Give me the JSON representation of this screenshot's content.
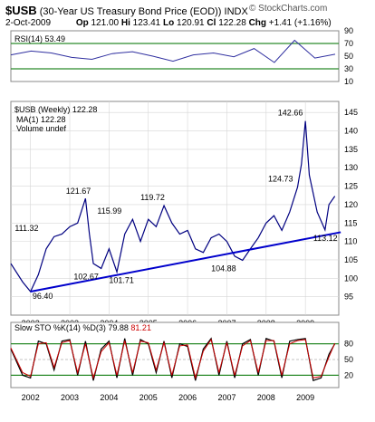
{
  "header": {
    "symbol": "$USB",
    "description": "(30-Year US Treasury Bond Price (EOD)) INDX",
    "date": "2-Oct-2009",
    "op_label": "Op",
    "op": "121.00",
    "hi_label": "Hi",
    "hi": "123.41",
    "lo_label": "Lo",
    "lo": "120.91",
    "cl_label": "Cl",
    "cl": "122.28",
    "chg_label": "Chg",
    "chg": "+1.41 (+1.16%)",
    "watermark": "© StockCharts.com"
  },
  "colors": {
    "price": "#000080",
    "up": "#000000",
    "down": "#cc0000",
    "trendline": "#0000cc",
    "rsi": "#3030a0",
    "sto_k": "#000000",
    "sto_d": "#cc0000",
    "band": "#2a8a2a",
    "grid": "#d6d6d6"
  },
  "chart_data": [
    {
      "type": "line",
      "panel": "rsi",
      "legend": "RSI(14) 53.49",
      "ylim": [
        10,
        90
      ],
      "yticks": [
        "90",
        "70",
        "50",
        "30",
        "10"
      ],
      "bands": [
        70,
        30
      ],
      "x": [
        "2002",
        "2002.5",
        "2003",
        "2003.5",
        "2004",
        "2004.5",
        "2005",
        "2005.5",
        "2006",
        "2006.5",
        "2007",
        "2007.5",
        "2008",
        "2008.5",
        "2009",
        "2009.5",
        "2009.75"
      ],
      "values": [
        52,
        58,
        55,
        48,
        45,
        54,
        57,
        50,
        42,
        52,
        55,
        49,
        62,
        40,
        75,
        47,
        53
      ]
    },
    {
      "type": "line",
      "panel": "price",
      "title": "$USB (Weekly) 122.28",
      "legend": [
        "MA(1) 122.28",
        "Volume undef"
      ],
      "ylim": [
        90,
        148
      ],
      "yticks": [
        "145",
        "140",
        "135",
        "130",
        "125",
        "120",
        "115",
        "110",
        "105",
        "100",
        "95"
      ],
      "xticks": [
        "2002",
        "2003",
        "2004",
        "2005",
        "2006",
        "2007",
        "2008",
        "2009"
      ],
      "annotations": [
        {
          "label": "96.40",
          "value": 96.4
        },
        {
          "label": "111.32",
          "value": 111.32
        },
        {
          "label": "121.67",
          "value": 121.67
        },
        {
          "label": "102.67",
          "value": 102.67
        },
        {
          "label": "101.71",
          "value": 101.71
        },
        {
          "label": "115.99",
          "value": 115.99
        },
        {
          "label": "119.72",
          "value": 119.72
        },
        {
          "label": "104.88",
          "value": 104.88
        },
        {
          "label": "124.73",
          "value": 124.73
        },
        {
          "label": "142.66",
          "value": 142.66
        },
        {
          "label": "113.12",
          "value": 113.12
        }
      ],
      "series": [
        {
          "x": [
            2001.5,
            2001.8,
            2002.0,
            2002.2,
            2002.4,
            2002.6,
            2002.8,
            2003.0,
            2003.2,
            2003.4,
            2003.5,
            2003.6,
            2003.8,
            2004.0,
            2004.2,
            2004.4,
            2004.6,
            2004.8,
            2005.0,
            2005.2,
            2005.4,
            2005.6,
            2005.8,
            2006.0,
            2006.2,
            2006.4,
            2006.6,
            2006.8,
            2007.0,
            2007.2,
            2007.4,
            2007.6,
            2007.8,
            2008.0,
            2008.2,
            2008.4,
            2008.6,
            2008.8,
            2008.9,
            2009.0,
            2009.1,
            2009.3,
            2009.5,
            2009.6,
            2009.75
          ],
          "y": [
            104,
            99,
            96.4,
            101,
            108,
            111.3,
            112,
            114,
            115,
            121.67,
            112,
            104,
            102.67,
            108,
            101.71,
            112,
            115.99,
            110,
            116,
            114,
            119.72,
            115,
            112,
            113,
            108,
            107,
            111,
            112,
            110,
            106,
            104.88,
            108,
            111,
            115,
            117,
            113,
            118,
            124.73,
            131,
            142.66,
            128,
            118,
            113.12,
            120,
            122.28
          ]
        }
      ],
      "trendline": {
        "x": [
          2002.0,
          2009.9
        ],
        "y": [
          96.4,
          112.5
        ]
      }
    },
    {
      "type": "line",
      "panel": "stochastic",
      "legend_prefix": "Slow STO %K(14) %D(3)",
      "k_value": "79.88",
      "d_value": "81.21",
      "ylim": [
        0,
        100
      ],
      "yticks": [
        "80",
        "50",
        "20"
      ],
      "bands": [
        80,
        20
      ],
      "xticks": [
        "2002",
        "2003",
        "2004",
        "2005",
        "2006",
        "2007",
        "2008",
        "2009"
      ],
      "x": [
        2001.5,
        2001.8,
        2002.0,
        2002.2,
        2002.4,
        2002.6,
        2002.8,
        2003.0,
        2003.2,
        2003.4,
        2003.6,
        2003.8,
        2004.0,
        2004.2,
        2004.4,
        2004.6,
        2004.8,
        2005.0,
        2005.2,
        2005.4,
        2005.6,
        2005.8,
        2006.0,
        2006.2,
        2006.4,
        2006.6,
        2006.8,
        2007.0,
        2007.2,
        2007.4,
        2007.6,
        2007.8,
        2008.0,
        2008.2,
        2008.4,
        2008.6,
        2008.8,
        2009.0,
        2009.2,
        2009.4,
        2009.6,
        2009.75
      ],
      "k": [
        70,
        20,
        15,
        85,
        80,
        30,
        85,
        88,
        20,
        85,
        10,
        70,
        85,
        15,
        90,
        20,
        88,
        80,
        25,
        85,
        15,
        80,
        75,
        10,
        70,
        90,
        20,
        85,
        15,
        80,
        88,
        20,
        90,
        85,
        15,
        85,
        88,
        90,
        10,
        15,
        60,
        80
      ],
      "d": [
        72,
        25,
        18,
        80,
        82,
        35,
        82,
        86,
        25,
        80,
        15,
        65,
        82,
        20,
        86,
        25,
        85,
        82,
        30,
        82,
        20,
        76,
        78,
        15,
        66,
        88,
        25,
        82,
        20,
        76,
        86,
        25,
        86,
        86,
        20,
        80,
        86,
        88,
        15,
        18,
        55,
        81
      ]
    }
  ]
}
